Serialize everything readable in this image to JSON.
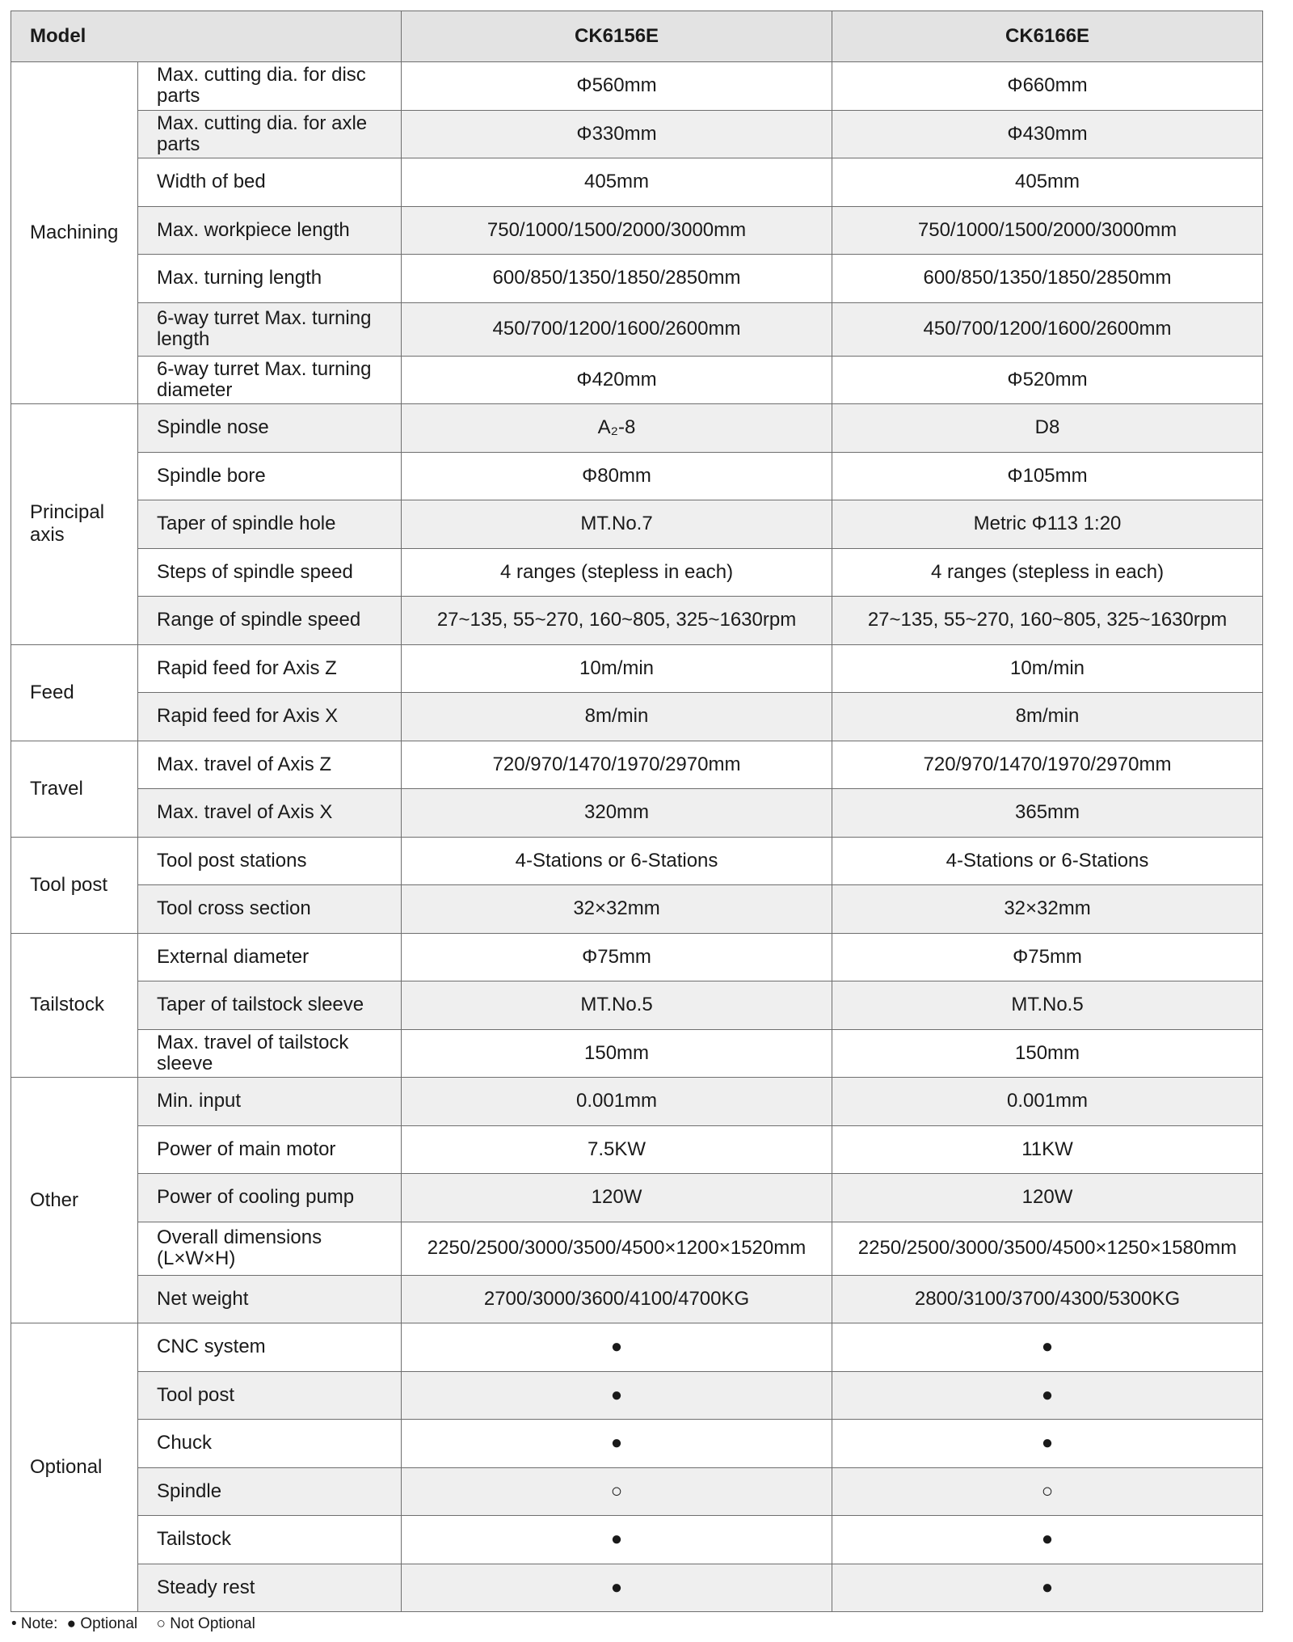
{
  "header": {
    "model_label": "Model",
    "models": [
      "CK6156E",
      "CK6166E"
    ]
  },
  "groups": [
    {
      "name": "Machining",
      "rows": [
        {
          "param": "Max. cutting dia. for disc parts",
          "values": [
            "Φ560mm",
            "Φ660mm"
          ]
        },
        {
          "param": "Max. cutting dia. for axle parts",
          "values": [
            "Φ330mm",
            "Φ430mm"
          ]
        },
        {
          "param": "Width of bed",
          "values": [
            "405mm",
            "405mm"
          ]
        },
        {
          "param": "Max. workpiece length",
          "values": [
            "750/1000/1500/2000/3000mm",
            "750/1000/1500/2000/3000mm"
          ]
        },
        {
          "param": "Max. turning length",
          "values": [
            "600/850/1350/1850/2850mm",
            "600/850/1350/1850/2850mm"
          ]
        },
        {
          "param": "6-way turret Max. turning length",
          "values": [
            "450/700/1200/1600/2600mm",
            "450/700/1200/1600/2600mm"
          ]
        },
        {
          "param": "6-way turret Max. turning diameter",
          "values": [
            "Φ420mm",
            "Φ520mm"
          ]
        }
      ]
    },
    {
      "name": "Principal axis",
      "rows": [
        {
          "param": "Spindle nose",
          "values": [
            "A₂-8",
            "D8"
          ]
        },
        {
          "param": "Spindle bore",
          "values": [
            "Φ80mm",
            "Φ105mm"
          ]
        },
        {
          "param": "Taper of spindle hole",
          "values": [
            "MT.No.7",
            "Metric Φ113 1:20"
          ]
        },
        {
          "param": "Steps of spindle speed",
          "values": [
            "4 ranges (stepless in each)",
            "4 ranges (stepless in each)"
          ]
        },
        {
          "param": "Range of spindle speed",
          "values": [
            "27~135, 55~270, 160~805, 325~1630rpm",
            "27~135, 55~270, 160~805, 325~1630rpm"
          ]
        }
      ]
    },
    {
      "name": "Feed",
      "rows": [
        {
          "param": "Rapid feed for Axis Z",
          "values": [
            "10m/min",
            "10m/min"
          ]
        },
        {
          "param": "Rapid feed for Axis X",
          "values": [
            "8m/min",
            "8m/min"
          ]
        }
      ]
    },
    {
      "name": "Travel",
      "rows": [
        {
          "param": "Max. travel of Axis Z",
          "values": [
            "720/970/1470/1970/2970mm",
            "720/970/1470/1970/2970mm"
          ]
        },
        {
          "param": "Max. travel of Axis X",
          "values": [
            "320mm",
            "365mm"
          ]
        }
      ]
    },
    {
      "name": "Tool post",
      "rows": [
        {
          "param": "Tool post stations",
          "values": [
            "4-Stations or 6-Stations",
            "4-Stations or 6-Stations"
          ]
        },
        {
          "param": "Tool cross section",
          "values": [
            "32×32mm",
            "32×32mm"
          ]
        }
      ]
    },
    {
      "name": "Tailstock",
      "rows": [
        {
          "param": "External diameter",
          "values": [
            "Φ75mm",
            "Φ75mm"
          ]
        },
        {
          "param": "Taper of tailstock sleeve",
          "values": [
            "MT.No.5",
            "MT.No.5"
          ]
        },
        {
          "param": "Max. travel of tailstock sleeve",
          "values": [
            "150mm",
            "150mm"
          ]
        }
      ]
    },
    {
      "name": "Other",
      "rows": [
        {
          "param": "Min. input",
          "values": [
            "0.001mm",
            "0.001mm"
          ]
        },
        {
          "param": "Power of main motor",
          "values": [
            "7.5KW",
            "11KW"
          ]
        },
        {
          "param": "Power of cooling pump",
          "values": [
            "120W",
            "120W"
          ]
        },
        {
          "param": "Overall dimensions (L×W×H)",
          "values": [
            "2250/2500/3000/3500/4500×1200×1520mm",
            "2250/2500/3000/3500/4500×1250×1580mm"
          ]
        },
        {
          "param": "Net weight",
          "values": [
            "2700/3000/3600/4100/4700KG",
            "2800/3100/3700/4300/5300KG"
          ]
        }
      ]
    },
    {
      "name": "Optional",
      "rows": [
        {
          "param": "CNC system",
          "values": [
            "●",
            "●"
          ]
        },
        {
          "param": "Tool post",
          "values": [
            "●",
            "●"
          ]
        },
        {
          "param": "Chuck",
          "values": [
            "●",
            "●"
          ]
        },
        {
          "param": "Spindle",
          "values": [
            "○",
            "○"
          ]
        },
        {
          "param": "Tailstock",
          "values": [
            "●",
            "●"
          ]
        },
        {
          "param": "Steady rest",
          "values": [
            "●",
            "●"
          ]
        }
      ]
    }
  ],
  "note": {
    "prefix": "• Note:",
    "optional": "● Optional",
    "not_optional": "○ Not Optional"
  }
}
